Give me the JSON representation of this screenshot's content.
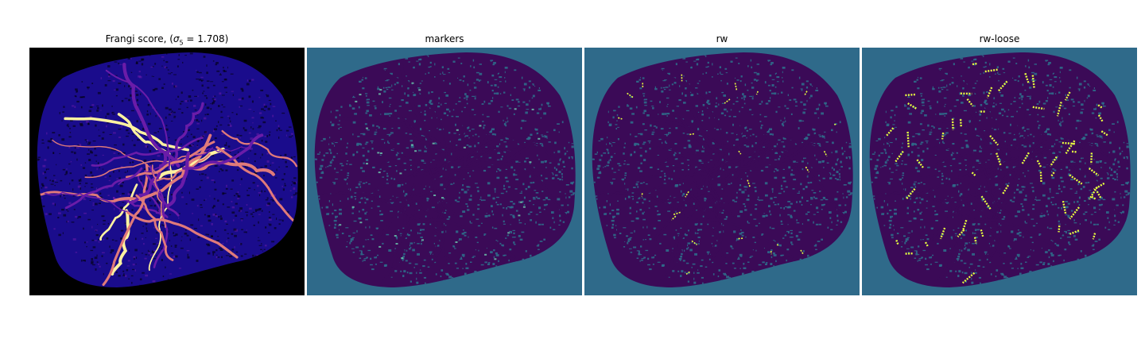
{
  "figure": {
    "panels": [
      {
        "title_prefix": "Frangi score, (",
        "title_math": "σ",
        "title_sub": "5",
        "title_suffix": " = 1.708)"
      },
      {
        "title": "markers"
      },
      {
        "title": "rw"
      },
      {
        "title": "rw-loose"
      }
    ]
  },
  "colors": {
    "frangi_background": "#000000",
    "frangi_low": "#1a0c8c",
    "frangi_mid": "#6a1ca8",
    "frangi_high": "#e07a7a",
    "frangi_peak": "#fff2a0",
    "seg_background": "#2f6a8a",
    "seg_foreground": "#3b0a57",
    "seg_marker": "#6fd0b0",
    "seg_highlight": "#e8ff40"
  }
}
